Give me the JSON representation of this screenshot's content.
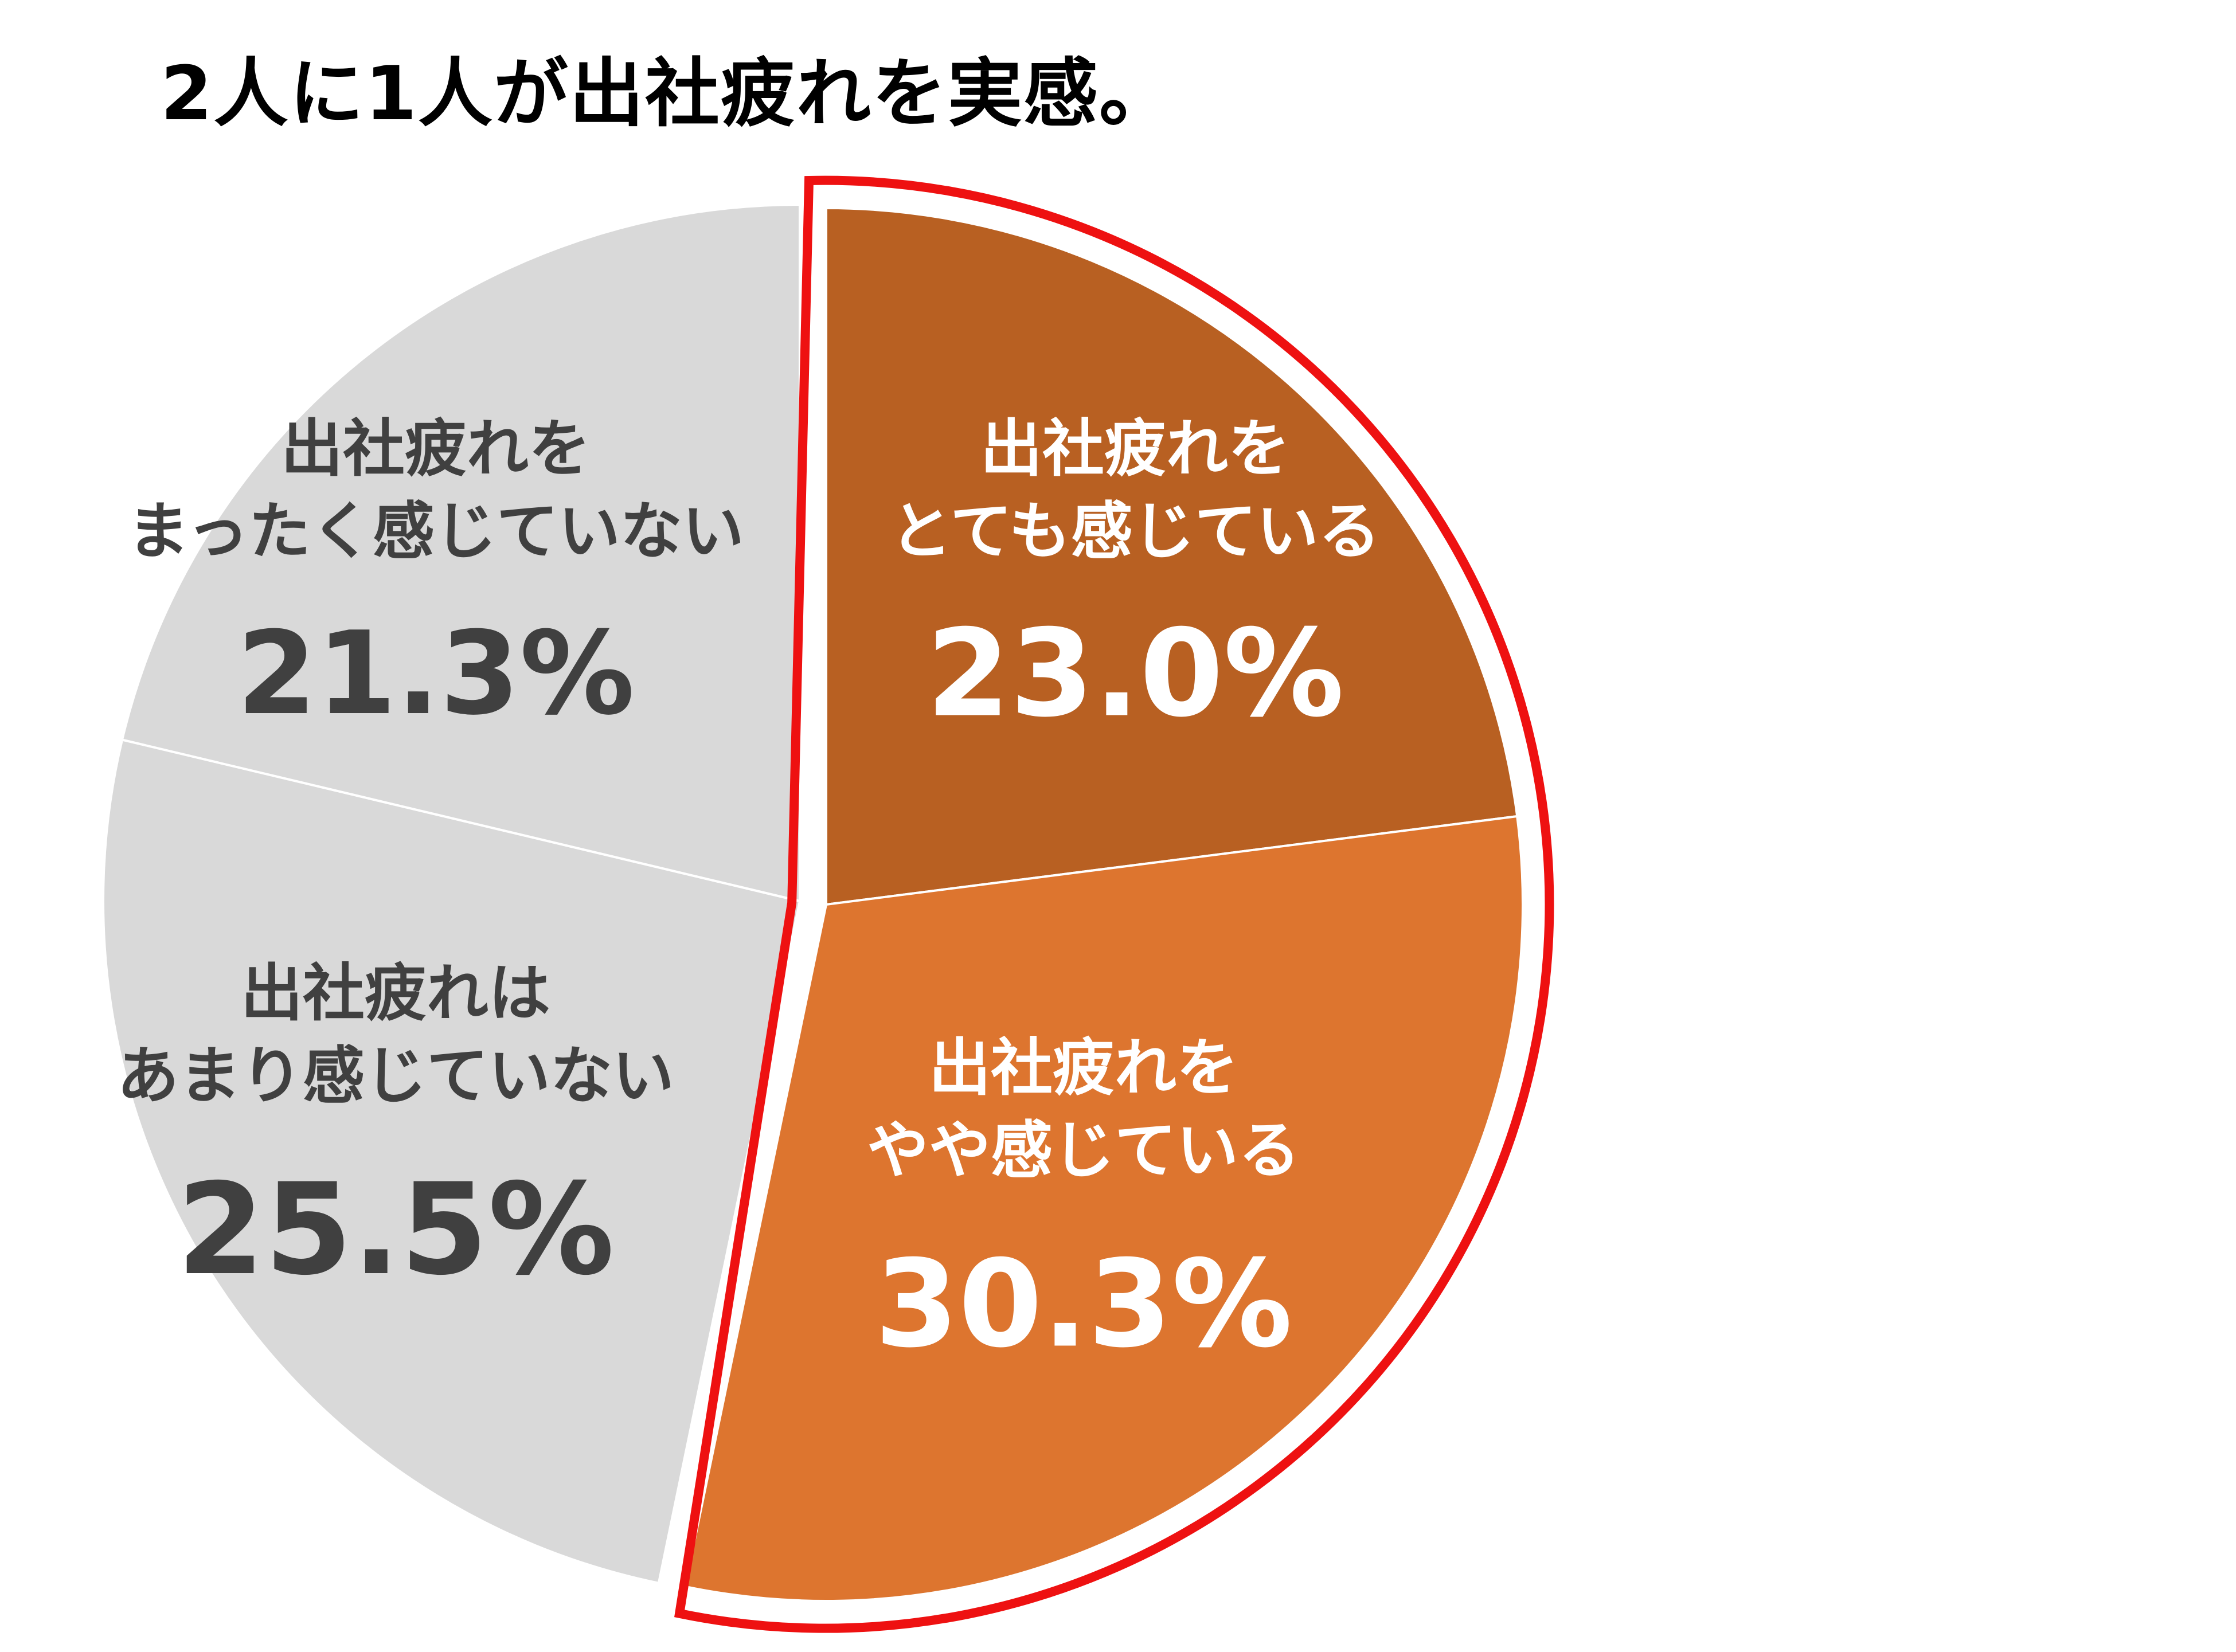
{
  "chart_data": {
    "type": "pie",
    "title": "2人に1人が出社疲れを実感。",
    "start_angle_deg": 0,
    "direction": "clockwise",
    "slices": [
      {
        "name_lines": [
          "出社疲れを",
          "とても感じている"
        ],
        "value": 23.0,
        "value_text": "23.0%",
        "color": "#B86022",
        "text_color": "#ffffff",
        "highlighted": true
      },
      {
        "name_lines": [
          "出社疲れを",
          "やや感じている"
        ],
        "value": 30.3,
        "value_text": "30.3%",
        "color": "#DD752F",
        "text_color": "#ffffff",
        "highlighted": true
      },
      {
        "name_lines": [
          "出社疲れは",
          "あまり感じていない"
        ],
        "value": 25.5,
        "value_text": "25.5%",
        "color": "#D9D9D9",
        "text_color": "#404040",
        "highlighted": false
      },
      {
        "name_lines": [
          "出社疲れを",
          "まったく感じていない"
        ],
        "value": 21.3,
        "value_text": "21.3%",
        "color": "#D9D9D9",
        "text_color": "#404040",
        "highlighted": false
      }
    ],
    "highlight_outline_color": "#EE1111"
  }
}
